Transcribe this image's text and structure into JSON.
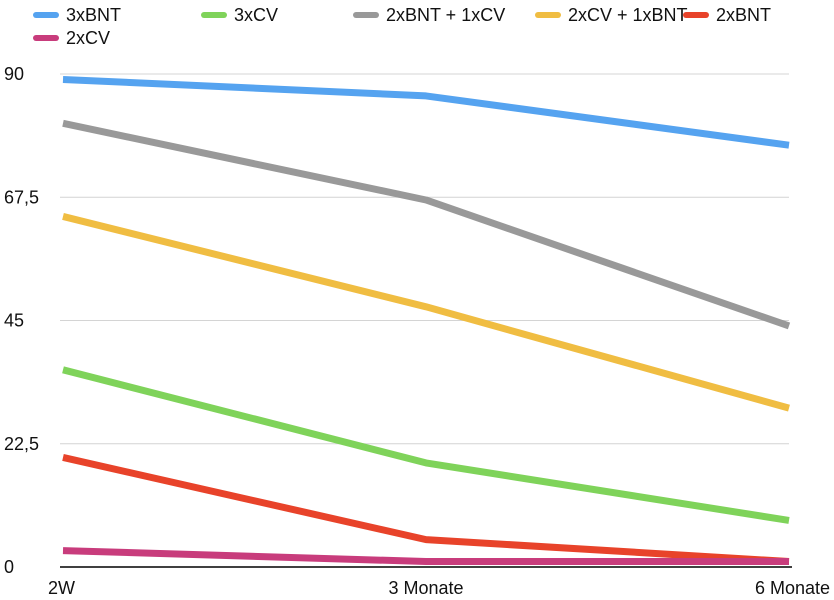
{
  "chart_data": {
    "type": "line",
    "categories": [
      "2W",
      "3 Monate",
      "6 Monate"
    ],
    "ylim": [
      0,
      90
    ],
    "yticks": [
      "0",
      "22,5",
      "45",
      "67,5",
      "90"
    ],
    "ytick_values": [
      0,
      22.5,
      45,
      67.5,
      90
    ],
    "grid": true,
    "legend_position": "top",
    "series": [
      {
        "name": "3xBNT",
        "color": "#55a3f0",
        "values": [
          89,
          86,
          77
        ]
      },
      {
        "name": "3xCV",
        "color": "#7fd35a",
        "values": [
          36,
          19,
          8.5
        ]
      },
      {
        "name": "2xBNT + 1xCV",
        "color": "#999999",
        "values": [
          81,
          67,
          44
        ]
      },
      {
        "name": "2xCV + 1xBNT",
        "color": "#f0bd42",
        "values": [
          64,
          47.5,
          29
        ]
      },
      {
        "name": "2xBNT",
        "color": "#e8432a",
        "values": [
          20,
          5,
          1
        ]
      },
      {
        "name": "2xCV",
        "color": "#c83c7c",
        "values": [
          3,
          1,
          1
        ]
      }
    ]
  }
}
